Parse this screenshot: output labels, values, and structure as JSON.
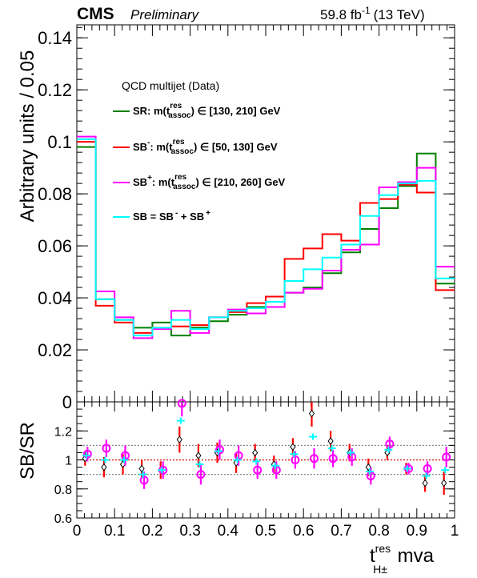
{
  "header": {
    "experiment": "CMS",
    "status": "Preliminary",
    "lumi_value": "59.8 fb",
    "lumi_exp": "-1",
    "energy": "(13 TeV)"
  },
  "chart_data": [
    {
      "type": "line",
      "step": true,
      "x_bin_edges": [
        0,
        0.05,
        0.1,
        0.15,
        0.2,
        0.25,
        0.3,
        0.35,
        0.4,
        0.45,
        0.5,
        0.55,
        0.6,
        0.65,
        0.7,
        0.75,
        0.8,
        0.85,
        0.9,
        0.95,
        1.0
      ],
      "ylim": [
        0,
        0.145
      ],
      "xlim": [
        0,
        1
      ],
      "yticks": [
        "0",
        "0.02",
        "0.04",
        "0.06",
        "0.08",
        "0.1",
        "0.12",
        "0.14"
      ],
      "ylabel": "Arbitrary units / 0.05",
      "legend_title": "QCD multijet (Data)",
      "legend_position": "top-left",
      "series": [
        {
          "key": "SR",
          "color": "#008000",
          "label": {
            "pre": "SR: m(t",
            "sup": "res",
            "sub": "assoc",
            "post": ") ∈ [130, 210] GeV"
          },
          "values": [
            0.098,
            0.0395,
            0.0315,
            0.0285,
            0.0305,
            0.0255,
            0.0285,
            0.031,
            0.0335,
            0.0365,
            0.0385,
            0.042,
            0.044,
            0.0495,
            0.0575,
            0.0665,
            0.0745,
            0.083,
            0.0955,
            0.0455
          ]
        },
        {
          "key": "SB-",
          "color": "#ff0000",
          "label": {
            "pre": "SB",
            "supA": "-",
            "mid": ": m(t",
            "sup": "res",
            "sub": "assoc",
            "post": ") ∈ [50, 130] GeV"
          },
          "values": [
            0.1,
            0.037,
            0.0305,
            0.0265,
            0.0285,
            0.029,
            0.0295,
            0.0325,
            0.0345,
            0.038,
            0.0405,
            0.055,
            0.059,
            0.0645,
            0.062,
            0.0765,
            0.078,
            0.0835,
            0.0805,
            0.043
          ]
        },
        {
          "key": "SB+",
          "color": "#ff00ff",
          "label": {
            "pre": "SB",
            "supA": "+",
            "mid": ": m(t",
            "sup": "res",
            "sub": "assoc",
            "post": ") ∈ [210, 260] GeV"
          },
          "values": [
            0.102,
            0.0425,
            0.0325,
            0.0245,
            0.028,
            0.035,
            0.0265,
            0.0325,
            0.0355,
            0.034,
            0.0365,
            0.042,
            0.0435,
            0.0505,
            0.0585,
            0.0605,
            0.0825,
            0.0845,
            0.09,
            0.052
          ]
        },
        {
          "key": "SB",
          "color": "#00ffff",
          "label": {
            "pre": "SB = SB",
            "supA": "-",
            "mid": " + SB",
            "supB": "+"
          },
          "values": [
            0.101,
            0.0395,
            0.0315,
            0.0255,
            0.0285,
            0.0315,
            0.028,
            0.0325,
            0.035,
            0.036,
            0.0385,
            0.0465,
            0.051,
            0.0555,
            0.0605,
            0.0715,
            0.0795,
            0.084,
            0.085,
            0.0475
          ]
        }
      ]
    },
    {
      "type": "scatter",
      "x": [
        0.025,
        0.075,
        0.125,
        0.175,
        0.225,
        0.275,
        0.325,
        0.375,
        0.425,
        0.475,
        0.525,
        0.575,
        0.625,
        0.675,
        0.725,
        0.775,
        0.825,
        0.875,
        0.925,
        0.975
      ],
      "xlim": [
        0,
        1
      ],
      "ylim": [
        0.6,
        1.4
      ],
      "yticks": [
        "0.6",
        "0.8",
        "1",
        "1.2"
      ],
      "xticks": [
        "0",
        "0.1",
        "0.2",
        "0.3",
        "0.4",
        "0.5",
        "0.6",
        "0.7",
        "0.8",
        "0.9",
        "1"
      ],
      "ylabel": "SB/SR",
      "xlabel": {
        "main": "t",
        "sup": "res",
        "sub": "H±",
        "post": " mva"
      },
      "reference_lines": [
        1.0,
        0.9,
        1.1
      ],
      "series": [
        {
          "key": "SB-/SR",
          "color": "#ff0000",
          "marker": "diamond",
          "y": [
            1.01,
            0.95,
            0.97,
            0.94,
            0.93,
            1.14,
            1.03,
            1.05,
            0.98,
            1.05,
            0.97,
            1.09,
            1.32,
            1.13,
            1.05,
            0.95,
            1.05,
            0.94,
            0.84,
            0.84
          ],
          "err": [
            0.05,
            0.07,
            0.07,
            0.06,
            0.06,
            0.09,
            0.08,
            0.07,
            0.07,
            0.06,
            0.06,
            0.06,
            0.09,
            0.07,
            0.06,
            0.06,
            0.05,
            0.04,
            0.06,
            0.08
          ]
        },
        {
          "key": "SB+/SR",
          "color": "#ff00ff",
          "marker": "circle",
          "y": [
            1.04,
            1.08,
            1.03,
            0.86,
            0.93,
            1.39,
            0.9,
            1.07,
            1.03,
            0.93,
            0.93,
            1.0,
            1.01,
            1.01,
            1.02,
            0.89,
            1.11,
            0.94,
            0.94,
            1.02
          ],
          "err": [
            0.05,
            0.06,
            0.07,
            0.06,
            0.06,
            0.09,
            0.07,
            0.07,
            0.07,
            0.06,
            0.06,
            0.06,
            0.07,
            0.06,
            0.06,
            0.06,
            0.05,
            0.04,
            0.05,
            0.07
          ]
        },
        {
          "key": "SB/SR",
          "color": "#00ffff",
          "marker": "cross",
          "y": [
            1.03,
            1.0,
            1.0,
            0.9,
            0.93,
            1.27,
            0.97,
            1.06,
            1.0,
            0.99,
            0.96,
            1.04,
            1.16,
            1.08,
            1.05,
            0.92,
            1.07,
            0.94,
            0.89,
            0.93
          ],
          "err": [
            0.02,
            0.02,
            0.02,
            0.02,
            0.02,
            0.02,
            0.02,
            0.02,
            0.02,
            0.02,
            0.02,
            0.02,
            0.02,
            0.02,
            0.02,
            0.02,
            0.02,
            0.02,
            0.02,
            0.02
          ]
        }
      ]
    }
  ]
}
